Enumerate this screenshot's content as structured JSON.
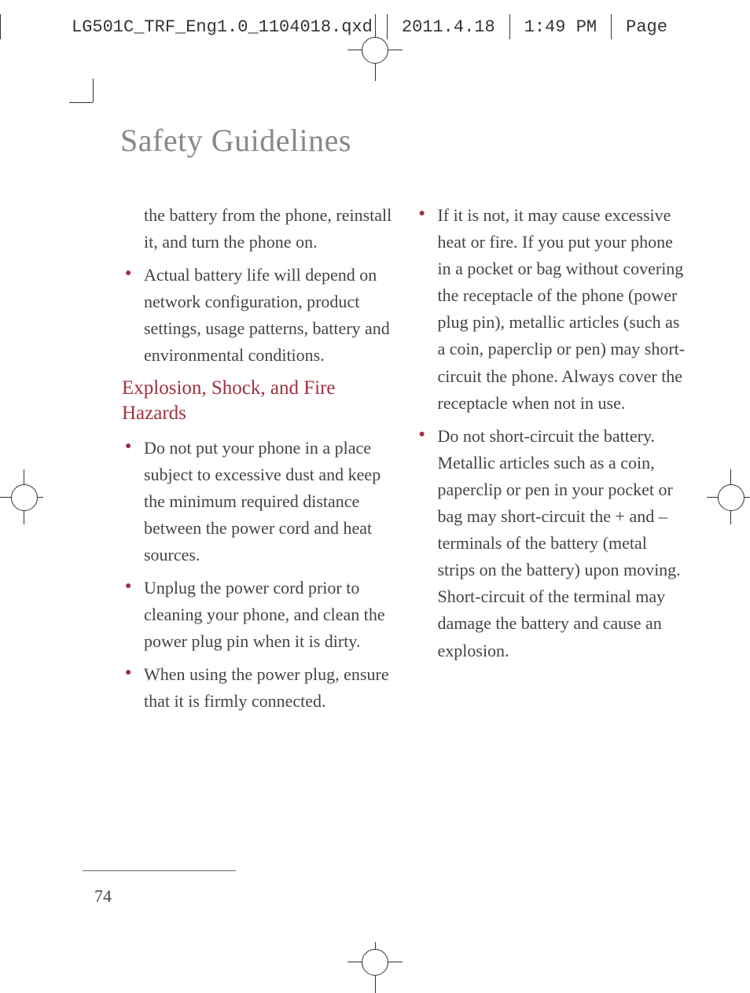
{
  "header": {
    "filename": "LG501C_TRF_Eng1.0_1104018.qxd",
    "date": "2011.4.18",
    "time": "1:49 PM",
    "page_label": "Page"
  },
  "title": "Safety Guidelines",
  "col1": {
    "cont": "the battery from the phone, reinstall it, and turn the phone on.",
    "bullet1": "Actual battery life will depend on network configuration, product settings, usage patterns, battery and environmental conditions.",
    "subhead": "Explosion, Shock, and Fire Hazards",
    "bullet2": "Do not put your phone in a place subject to excessive dust and keep the minimum required distance between the power cord and heat sources.",
    "bullet3": "Unplug the power cord prior to cleaning your phone, and clean the power plug pin when it is dirty.",
    "bullet4": "When using the power plug, ensure that it is firmly connected."
  },
  "col2": {
    "bullet1": "If it is not, it may cause excessive heat or fire. If you put your phone in a pocket or bag without covering the receptacle of the phone (power plug pin), metallic articles (such as a coin, paperclip or pen) may short-circuit the phone. Always cover the receptacle when not in use.",
    "bullet2": "Do not short-circuit the battery. Metallic articles such as a coin, paperclip or pen in your pocket or bag may short-circuit the + and – terminals of the battery (metal strips on the battery) upon moving. Short-circuit of the terminal may damage the battery and cause an explosion."
  },
  "page_number": "74",
  "colors": {
    "accent": "#a03040",
    "title_gray": "#888888",
    "body_text": "#444444",
    "header_text": "#333333"
  }
}
